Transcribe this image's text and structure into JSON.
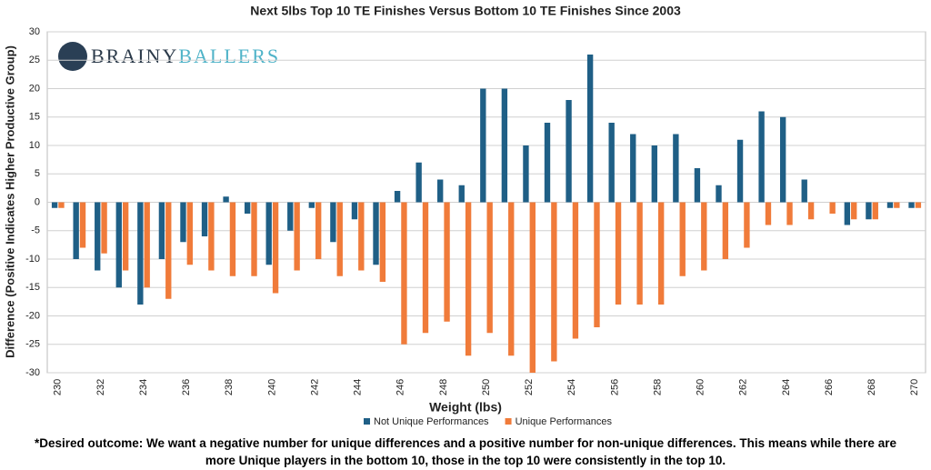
{
  "chart_data": {
    "type": "bar",
    "title": "Next 5lbs Top 10 TE Finishes Versus Bottom 10 TE Finishes Since 2003",
    "x_label": "Weight (lbs)",
    "y_label": "Difference (Positive Indicates Higher Productive Group)",
    "categories": [
      "230",
      null,
      "232",
      null,
      "234",
      null,
      "236",
      null,
      "238",
      null,
      "240",
      null,
      "242",
      null,
      "244",
      null,
      "246",
      null,
      "248",
      null,
      "250",
      null,
      "252",
      null,
      "254",
      null,
      "256",
      null,
      "258",
      null,
      "260",
      null,
      "262",
      null,
      "264",
      null,
      "266",
      null,
      "268",
      null,
      "270"
    ],
    "series": [
      {
        "name": "Not Unique Performances",
        "color": "#1f5f86",
        "values": [
          -1,
          -10,
          -12,
          -15,
          -18,
          -10,
          -7,
          -6,
          1,
          -2,
          -11,
          -5,
          -1,
          -7,
          -3,
          -11,
          2,
          7,
          4,
          3,
          20,
          20,
          10,
          14,
          18,
          26,
          14,
          12,
          10,
          12,
          6,
          3,
          11,
          16,
          15,
          4,
          0,
          -4,
          -3,
          -1,
          -1
        ]
      },
      {
        "name": "Unique Performances",
        "color": "#f07b3a",
        "values": [
          -1,
          -8,
          -9,
          -12,
          -15,
          -17,
          -11,
          -12,
          -13,
          -13,
          -16,
          -12,
          -10,
          -13,
          -12,
          -14,
          -25,
          -23,
          -21,
          -27,
          -23,
          -27,
          -30,
          -28,
          -24,
          -22,
          -18,
          -18,
          -18,
          -13,
          -12,
          -10,
          -8,
          -4,
          -4,
          -3,
          -2,
          -3,
          -3,
          -1,
          -1
        ]
      }
    ],
    "ylim": [
      -30,
      30
    ],
    "yticks": [
      -30,
      -25,
      -20,
      -15,
      -10,
      -5,
      0,
      5,
      10,
      15,
      20,
      25,
      30
    ],
    "grid": true,
    "legend": "bottom"
  },
  "logo": [
    "BRAINY",
    "BALLERS"
  ],
  "footnote": "*Desired outcome: We want a negative number for unique differences and a positive number for non-unique differences. This means while there are more Unique players in the bottom 10, those in the top 10 were consistently in the top 10."
}
